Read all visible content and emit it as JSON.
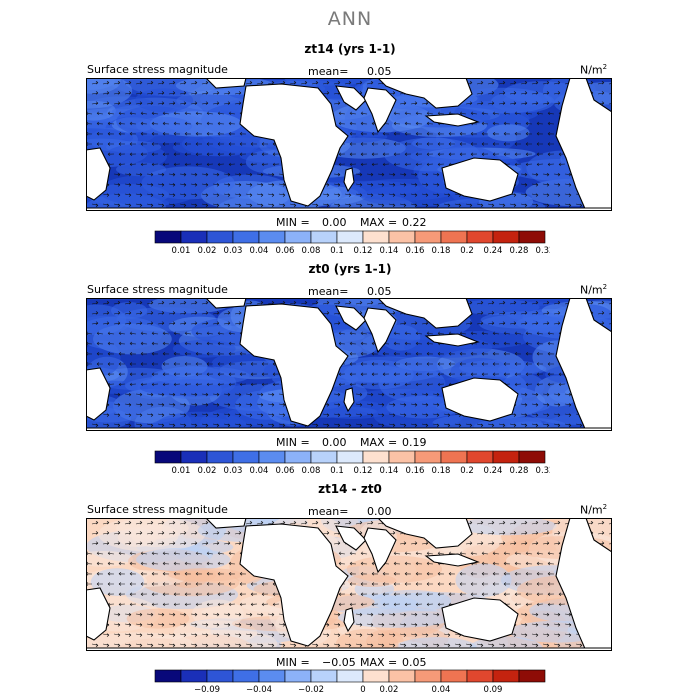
{
  "title": "ANN",
  "chart_data": [
    {
      "type": "heatmap",
      "title": "zt14 (yrs 1-1)",
      "variable": "Surface stress magnitude",
      "mean_label": "mean=",
      "mean": "0.05",
      "units": "N/m",
      "units_sup": "2",
      "min_label": "MIN =",
      "min": "0.00",
      "max_label": "MAX =",
      "max": "0.22",
      "colorbar_levels": [
        "0.01",
        "0.02",
        "0.03",
        "0.04",
        "0.06",
        "0.08",
        "0.1",
        "0.12",
        "0.14",
        "0.16",
        "0.18",
        "0.2",
        "0.24",
        "0.28",
        "0.32"
      ],
      "colorbar_colors": [
        "#08087a",
        "#1a2fb8",
        "#2e55d6",
        "#3f6fe6",
        "#5b8cf0",
        "#8cb2f8",
        "#b8d2fb",
        "#dce9fc",
        "#fde0cf",
        "#fbc2a6",
        "#f69a78",
        "#ef7452",
        "#e0472e",
        "#c4230f",
        "#8e0c06"
      ],
      "field_palette": [
        "#1638b8",
        "#2752d8",
        "#3a6ae8",
        "#5a8af2"
      ]
    },
    {
      "type": "heatmap",
      "title": "zt0 (yrs 1-1)",
      "variable": "Surface stress magnitude",
      "mean_label": "mean=",
      "mean": "0.05",
      "units": "N/m",
      "units_sup": "2",
      "min_label": "MIN =",
      "min": "0.00",
      "max_label": "MAX =",
      "max": "0.19",
      "colorbar_levels": [
        "0.01",
        "0.02",
        "0.03",
        "0.04",
        "0.06",
        "0.08",
        "0.1",
        "0.12",
        "0.14",
        "0.16",
        "0.18",
        "0.2",
        "0.24",
        "0.28",
        "0.32"
      ],
      "colorbar_colors": [
        "#08087a",
        "#1a2fb8",
        "#2e55d6",
        "#3f6fe6",
        "#5b8cf0",
        "#8cb2f8",
        "#b8d2fb",
        "#dce9fc",
        "#fde0cf",
        "#fbc2a6",
        "#f69a78",
        "#ef7452",
        "#e0472e",
        "#c4230f",
        "#8e0c06"
      ],
      "field_palette": [
        "#1638b8",
        "#2752d8",
        "#3a6ae8",
        "#5a8af2"
      ]
    },
    {
      "type": "heatmap",
      "title": "zt14 - zt0",
      "variable": "Surface stress magnitude",
      "mean_label": "mean=",
      "mean": "0.00",
      "units": "N/m",
      "units_sup": "2",
      "min_label": "MIN =",
      "min": "−0.05",
      "max_label": "MAX =",
      "max": "0.05",
      "colorbar_levels": [
        "−0.09",
        "−0.04",
        "−0.02",
        "0",
        "0.02",
        "0.04",
        "0.09"
      ],
      "colorbar_colors": [
        "#08087a",
        "#1a2fb8",
        "#2e55d6",
        "#3f6fe6",
        "#5b8cf0",
        "#8cb2f8",
        "#b8d2fb",
        "#dce9fc",
        "#fde0cf",
        "#fbc2a6",
        "#f69a78",
        "#ef7452",
        "#e0472e",
        "#c4230f",
        "#8e0c06"
      ],
      "field_palette": [
        "#fbd8c2",
        "#f6c0a0",
        "#bcd2f6",
        "#f9e6da"
      ]
    }
  ]
}
